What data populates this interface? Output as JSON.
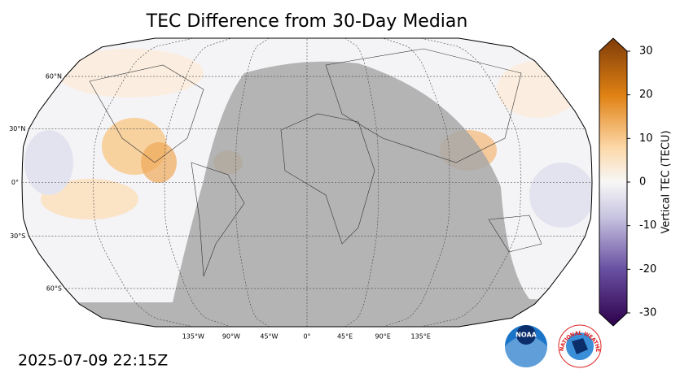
{
  "title": "TEC Difference from 30-Day Median",
  "timestamp": "2025-07-09 22:15Z",
  "map": {
    "lat_ticks": [
      {
        "value": 60,
        "label": "60°N"
      },
      {
        "value": 30,
        "label": "30°N"
      },
      {
        "value": 0,
        "label": "0°"
      },
      {
        "value": -30,
        "label": "30°S"
      },
      {
        "value": -60,
        "label": "60°S"
      }
    ],
    "lon_ticks": [
      {
        "value": -135,
        "label": "135°W"
      },
      {
        "value": -90,
        "label": "90°W"
      },
      {
        "value": -45,
        "label": "45°W"
      },
      {
        "value": 0,
        "label": "0°"
      },
      {
        "value": 45,
        "label": "45°E"
      },
      {
        "value": 90,
        "label": "90°E"
      },
      {
        "value": 135,
        "label": "135°E"
      }
    ],
    "graticule": true
  },
  "colorbar": {
    "label": "Vertical TEC (TECU)",
    "clim": [
      -30,
      30
    ],
    "ticks": [
      -30,
      -20,
      -10,
      0,
      10,
      20,
      30
    ]
  },
  "logos": {
    "noaa": "NOAA",
    "nws": "NATIONAL WEATHER SERVICE"
  }
}
